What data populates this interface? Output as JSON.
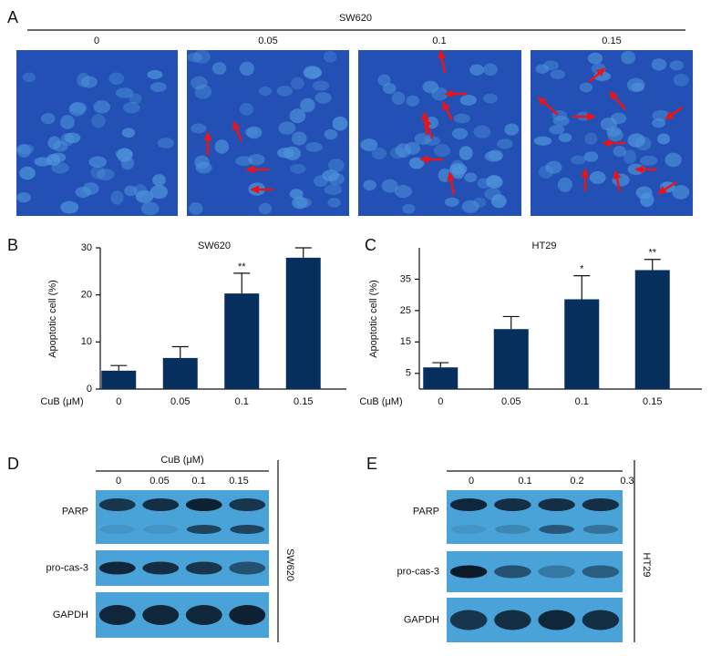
{
  "panel_a": {
    "letter": "A",
    "title": "SW620",
    "labels": [
      "0",
      "0.05",
      "0.1",
      "0.15"
    ]
  },
  "chart_data": [
    {
      "type": "bar",
      "letter": "B",
      "title": "SW620",
      "y_label": "Apoptotic cell (%)",
      "x_label": "CuB (μM)",
      "categories": [
        "0",
        "0.05",
        "0.1",
        "0.15"
      ],
      "values": [
        3.9,
        6.6,
        20.3,
        27.9
      ],
      "errors": [
        1.1,
        2.4,
        4.3,
        2.1
      ],
      "annotations": [
        null,
        null,
        "**",
        null
      ],
      "ylim": [
        0,
        30
      ],
      "yticks": [
        0,
        10,
        20,
        30
      ],
      "color": "#062f5e"
    },
    {
      "type": "bar",
      "letter": "C",
      "title": "HT29",
      "y_label": "Apoptotic cell (%)",
      "x_label": "CuB (μM)",
      "categories": [
        "0",
        "0.05",
        "0.1",
        "0.15"
      ],
      "values": [
        6.9,
        19.1,
        28.6,
        37.9
      ],
      "errors": [
        1.5,
        4.0,
        7.5,
        3.4
      ],
      "annotations": [
        null,
        null,
        "*",
        "**"
      ],
      "ylim": [
        0,
        45
      ],
      "yticks": [
        5,
        15,
        25,
        35
      ],
      "color": "#062f5e"
    }
  ],
  "panel_d": {
    "letter": "D",
    "header": "CuB (μM)",
    "lanes": [
      "0",
      "0.05",
      "0.1",
      "0.15"
    ],
    "rows": [
      "PARP",
      "pro-cas-3",
      "GAPDH"
    ],
    "cell_line": "SW620"
  },
  "panel_e": {
    "letter": "E",
    "lanes": [
      "0",
      "0.1",
      "0.2",
      "0.3"
    ],
    "rows": [
      "PARP",
      "pro-cas-3",
      "GAPDH"
    ],
    "cell_line": "HT29"
  }
}
